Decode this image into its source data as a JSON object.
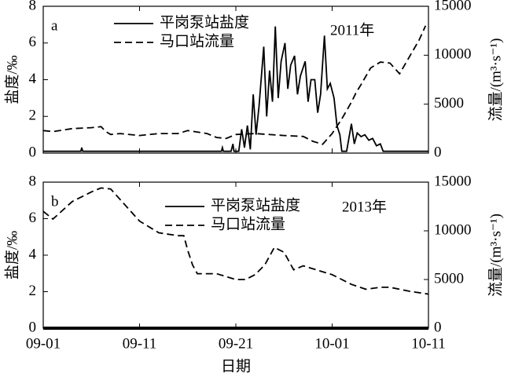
{
  "chart_data": [
    {
      "type": "line",
      "panel_label": "a",
      "annotation": "2011年",
      "ylabel": "盐度/‰",
      "y2label": "流量/(m³·s⁻¹)",
      "xlim": [
        0,
        40
      ],
      "xticks": [
        0,
        10,
        20,
        30,
        40
      ],
      "ylim": [
        0,
        8
      ],
      "yticks": [
        0,
        2,
        4,
        6,
        8
      ],
      "y2lim": [
        0,
        15000
      ],
      "y2ticks": [
        0,
        5000,
        10000,
        15000
      ],
      "series": [
        {
          "name": "平岗泵站盐度",
          "color": "#000000",
          "dashed": false,
          "x": [
            0,
            3.9,
            4,
            4.1,
            18.5,
            18.6,
            18.7,
            19.5,
            19.7,
            19.8,
            20.3,
            20.6,
            20.9,
            21.2,
            21.5,
            21.8,
            22.1,
            22.4,
            22.9,
            23.2,
            23.5,
            23.8,
            24.1,
            24.4,
            24.7,
            25.1,
            25.4,
            25.7,
            26.1,
            26.4,
            26.7,
            27.2,
            27.5,
            27.8,
            28.2,
            28.5,
            28.8,
            29.2,
            29.5,
            29.8,
            30.2,
            30.5,
            30.8,
            31.0,
            31.5,
            32.0,
            32.3,
            32.6,
            33.0,
            33.4,
            33.8,
            34.2,
            34.6,
            35.0,
            35.3,
            40
          ],
          "values": [
            0.1,
            0.1,
            0.3,
            0.1,
            0.1,
            0.3,
            0.1,
            0.1,
            0.5,
            0.1,
            0.1,
            1.3,
            0.3,
            1.5,
            0.2,
            3.2,
            1.0,
            2.5,
            5.8,
            2.0,
            4.5,
            2.8,
            6.9,
            3.0,
            5.0,
            6.0,
            3.5,
            4.8,
            5.3,
            3.2,
            4.2,
            5.0,
            2.8,
            4.0,
            4.0,
            2.2,
            3.2,
            6.4,
            3.5,
            3.8,
            3.0,
            1.5,
            1.0,
            0.1,
            0.1,
            1.6,
            0.5,
            1.1,
            0.9,
            1.0,
            0.7,
            0.8,
            0.4,
            0.5,
            0.1,
            0.1
          ]
        },
        {
          "name": "马口站流量",
          "color": "#000000",
          "dashed": true,
          "axis": "y2",
          "x": [
            0,
            1,
            3,
            5,
            6,
            6.5,
            7,
            8,
            10,
            12,
            14,
            15,
            17,
            18,
            19,
            20,
            22,
            25,
            27,
            28,
            29,
            30,
            31,
            32,
            32.5,
            33,
            34,
            35,
            36,
            37,
            38,
            39,
            39.7
          ],
          "values": [
            2300,
            2200,
            2500,
            2600,
            2700,
            2200,
            1900,
            2000,
            1800,
            2000,
            2000,
            2300,
            2000,
            1600,
            1500,
            1900,
            2000,
            1800,
            1700,
            1200,
            900,
            2000,
            3500,
            5200,
            6200,
            7000,
            8700,
            9300,
            9200,
            8100,
            9800,
            11500,
            13000
          ]
        }
      ]
    },
    {
      "type": "line",
      "panel_label": "b",
      "annotation": "2013年",
      "ylabel": "盐度/‰",
      "y2label": "流量/(m³·s⁻¹)",
      "xlabel": "日期",
      "xlim": [
        0,
        40
      ],
      "xticks": [
        {
          "value": 0,
          "label": "09-01"
        },
        {
          "value": 10,
          "label": "09-11"
        },
        {
          "value": 20,
          "label": "09-21"
        },
        {
          "value": 30,
          "label": "10-01"
        },
        {
          "value": 40,
          "label": "10-11"
        }
      ],
      "ylim": [
        0,
        8
      ],
      "yticks": [
        0,
        2,
        4,
        6,
        8
      ],
      "y2lim": [
        0,
        15000
      ],
      "y2ticks": [
        0,
        5000,
        10000,
        15000
      ],
      "series": [
        {
          "name": "平岗泵站盐度",
          "color": "#000000",
          "dashed": false,
          "x": [
            0,
            40
          ],
          "values": [
            0,
            0
          ]
        },
        {
          "name": "马口站流量",
          "color": "#000000",
          "dashed": true,
          "axis": "y2",
          "x": [
            0,
            1,
            3,
            5,
            6,
            7,
            8,
            10,
            12,
            14,
            14.6,
            15,
            15.5,
            16,
            18,
            20,
            21,
            22,
            23,
            24,
            25,
            26,
            27,
            30,
            32,
            33.5,
            35,
            36,
            38,
            40
          ],
          "values": [
            12000,
            11200,
            13000,
            14000,
            14400,
            14300,
            13200,
            11000,
            9800,
            9500,
            9500,
            8000,
            6500,
            5600,
            5600,
            5000,
            5000,
            5500,
            6500,
            8300,
            7800,
            6000,
            6400,
            5500,
            4500,
            4000,
            4200,
            4200,
            3800,
            3500
          ]
        }
      ]
    }
  ]
}
